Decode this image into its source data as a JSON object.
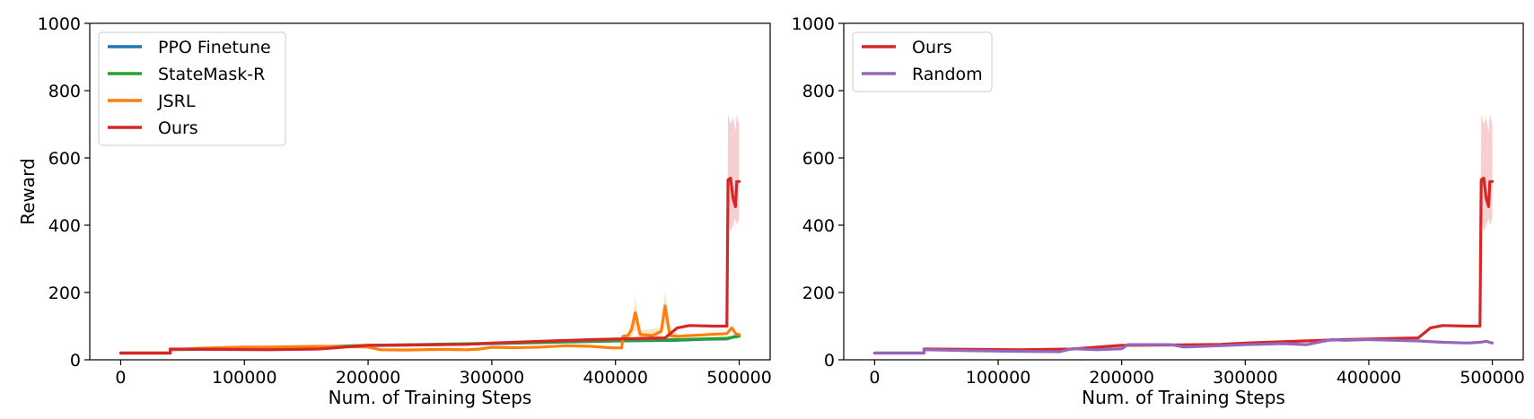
{
  "chart_data": [
    {
      "type": "line",
      "title": "",
      "xlabel": "Num. of Training Steps",
      "ylabel": "Reward",
      "xlim": [
        -25000,
        525000
      ],
      "ylim": [
        0,
        1000
      ],
      "xticks": [
        0,
        100000,
        200000,
        300000,
        400000,
        500000
      ],
      "yticks": [
        0,
        200,
        400,
        600,
        800,
        1000
      ],
      "grid": false,
      "legend": "top-left",
      "series": [
        {
          "name": "PPO Finetune",
          "color": "#1f77b4",
          "x": [
            0,
            40000,
            40001,
            100000,
            160000,
            200000,
            250000,
            300000,
            350000,
            400000,
            450000,
            470000,
            490000,
            495000,
            500000
          ],
          "y": [
            20,
            20,
            30,
            33,
            38,
            42,
            45,
            48,
            52,
            56,
            58,
            61,
            62,
            68,
            72
          ]
        },
        {
          "name": "StateMask-R",
          "color": "#2ca02c",
          "x": [
            0,
            40000,
            40001,
            100000,
            160000,
            200000,
            250000,
            300000,
            350000,
            400000,
            450000,
            490000,
            500000
          ],
          "y": [
            20,
            20,
            31,
            34,
            39,
            43,
            46,
            49,
            53,
            57,
            60,
            64,
            70
          ]
        },
        {
          "name": "JSRL",
          "color": "#ff7f0e",
          "x": [
            0,
            40000,
            40001,
            60000,
            80000,
            100000,
            120000,
            140000,
            160000,
            180000,
            200000,
            210000,
            230000,
            260000,
            280000,
            290000,
            300000,
            320000,
            340000,
            360000,
            380000,
            395000,
            405000,
            406000,
            410000,
            413000,
            416000,
            420000,
            430000,
            437000,
            440000,
            444000,
            450000,
            460000,
            470000,
            480000,
            490000,
            494000,
            497000,
            500000
          ],
          "y": [
            20,
            20,
            30,
            34,
            36,
            38,
            38,
            39,
            40,
            39,
            38,
            30,
            29,
            31,
            30,
            32,
            37,
            36,
            38,
            42,
            40,
            36,
            35,
            70,
            72,
            90,
            140,
            75,
            72,
            85,
            160,
            72,
            70,
            72,
            74,
            76,
            78,
            95,
            78,
            75
          ]
        },
        {
          "name": "Ours",
          "color": "#d62728",
          "x": [
            0,
            40000,
            40001,
            80000,
            120000,
            160000,
            200000,
            240000,
            280000,
            300000,
            340000,
            380000,
            400000,
            440000,
            450000,
            460000,
            480000,
            490000,
            491000,
            493000,
            495000,
            497000,
            498000,
            500000
          ],
          "y": [
            20,
            20,
            32,
            31,
            30,
            32,
            43,
            44,
            46,
            50,
            55,
            60,
            62,
            65,
            95,
            102,
            100,
            100,
            535,
            540,
            480,
            455,
            530,
            530
          ]
        }
      ],
      "bands": [
        {
          "series": "Ours",
          "color": "#d62728",
          "x": [
            490000,
            491000,
            493000,
            495000,
            497000,
            498000,
            500000
          ],
          "lower": [
            100,
            420,
            380,
            400,
            420,
            400,
            420
          ],
          "upper": [
            100,
            730,
            700,
            720,
            680,
            730,
            700
          ]
        },
        {
          "series": "JSRL",
          "color": "#ff7f0e",
          "x": [
            410000,
            413000,
            416000,
            420000,
            437000,
            440000,
            444000,
            450000
          ],
          "lower": [
            60,
            70,
            90,
            62,
            70,
            110,
            60,
            62
          ],
          "upper": [
            78,
            110,
            185,
            88,
            95,
            205,
            85,
            80
          ]
        }
      ]
    },
    {
      "type": "line",
      "title": "",
      "xlabel": "Num. of Training Steps",
      "ylabel": "",
      "xlim": [
        -25000,
        525000
      ],
      "ylim": [
        0,
        1000
      ],
      "xticks": [
        0,
        100000,
        200000,
        300000,
        400000,
        500000
      ],
      "yticks": [
        0,
        200,
        400,
        600,
        800,
        1000
      ],
      "grid": false,
      "legend": "top-left",
      "series": [
        {
          "name": "Ours",
          "color": "#d62728",
          "x": [
            0,
            40000,
            40001,
            80000,
            120000,
            160000,
            200000,
            240000,
            280000,
            300000,
            340000,
            380000,
            400000,
            440000,
            450000,
            460000,
            480000,
            490000,
            491000,
            493000,
            495000,
            497000,
            498000,
            500000
          ],
          "y": [
            20,
            20,
            32,
            31,
            30,
            32,
            43,
            44,
            46,
            50,
            55,
            60,
            62,
            65,
            95,
            102,
            100,
            100,
            535,
            540,
            480,
            455,
            530,
            530
          ]
        },
        {
          "name": "Random",
          "color": "#9467bd",
          "x": [
            0,
            40000,
            40001,
            80000,
            120000,
            150000,
            160000,
            180000,
            200000,
            205000,
            240000,
            250000,
            280000,
            300000,
            330000,
            350000,
            370000,
            380000,
            400000,
            420000,
            440000,
            460000,
            480000,
            490000,
            495000,
            500000
          ],
          "y": [
            20,
            20,
            30,
            27,
            25,
            24,
            33,
            30,
            33,
            45,
            45,
            38,
            42,
            45,
            48,
            45,
            60,
            58,
            60,
            58,
            56,
            52,
            50,
            52,
            55,
            50
          ]
        }
      ],
      "bands": [
        {
          "series": "Ours",
          "color": "#d62728",
          "x": [
            490000,
            491000,
            493000,
            495000,
            497000,
            498000,
            500000
          ],
          "lower": [
            100,
            420,
            380,
            400,
            420,
            400,
            420
          ],
          "upper": [
            100,
            730,
            700,
            720,
            680,
            730,
            700
          ]
        }
      ]
    }
  ]
}
